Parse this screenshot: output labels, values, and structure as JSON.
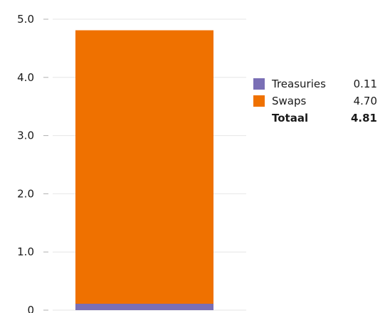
{
  "chart_data": {
    "type": "bar",
    "stacked": true,
    "categories": [
      ""
    ],
    "series": [
      {
        "name": "Treasuries",
        "values": [
          0.11
        ],
        "color": "#7a6fb5"
      },
      {
        "name": "Swaps",
        "values": [
          4.7
        ],
        "color": "#ef7100"
      }
    ],
    "ylim": [
      0,
      5.0
    ],
    "yticks": [
      0,
      1.0,
      2.0,
      3.0,
      4.0,
      5.0
    ],
    "ytick_labels": [
      "0",
      "1.0",
      "2.0",
      "3.0",
      "4.0",
      "5.0"
    ],
    "grid": true,
    "legend": {
      "placement": "right",
      "rows": [
        {
          "label": "Treasuries",
          "value": "0.11",
          "color": "#7a6fb5"
        },
        {
          "label": "Swaps",
          "value": "4.70",
          "color": "#ef7100"
        }
      ],
      "total": {
        "label": "Totaal",
        "value": "4.81"
      }
    }
  }
}
